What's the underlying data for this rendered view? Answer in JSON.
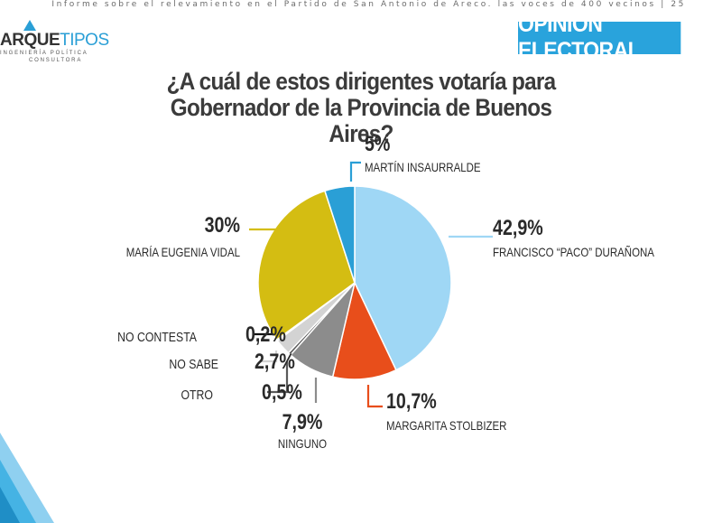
{
  "header": {
    "report_line": "Informe sobre el relevamiento en el Partido de San Antonio de Areco. las voces de 400 vecinos | 25"
  },
  "logo": {
    "name_part1": "ARQUE",
    "name_part2": "TIPOS",
    "sub1": "INGENIERÍA POLÍTICA",
    "sub2": "CONSULTORA"
  },
  "badge": {
    "label": "OPINIÓN ELECTORAL"
  },
  "chart_data": {
    "type": "pie",
    "title": "¿A cuál de estos dirigentes votaría para Gobernador de la Provincia de Buenos Aires?",
    "slices": [
      {
        "name": "FRANCISCO “PACO” DURAÑONA",
        "label": "42,9%",
        "value": 42.9,
        "color": "#9fd7f5"
      },
      {
        "name": "MARGARITA STOLBIZER",
        "label": "10,7%",
        "value": 10.7,
        "color": "#e84e1b"
      },
      {
        "name": "NINGUNO",
        "label": "7,9%",
        "value": 7.9,
        "color": "#8c8c8c"
      },
      {
        "name": "OTRO",
        "label": "0,5%",
        "value": 0.5,
        "color": "#5a5a5a"
      },
      {
        "name": "NO SABE",
        "label": "2,7%",
        "value": 2.7,
        "color": "#d3d3d3"
      },
      {
        "name": "NO CONTESTA",
        "label": "0,2%",
        "value": 0.2,
        "color": "#111111"
      },
      {
        "name": "MARÍA EUGENIA VIDAL",
        "label": "30%",
        "value": 30,
        "color": "#d4bd12"
      },
      {
        "name": "MARTÍN INSAURRALDE",
        "label": "5%",
        "value": 5,
        "color": "#2a9fd6"
      }
    ]
  }
}
